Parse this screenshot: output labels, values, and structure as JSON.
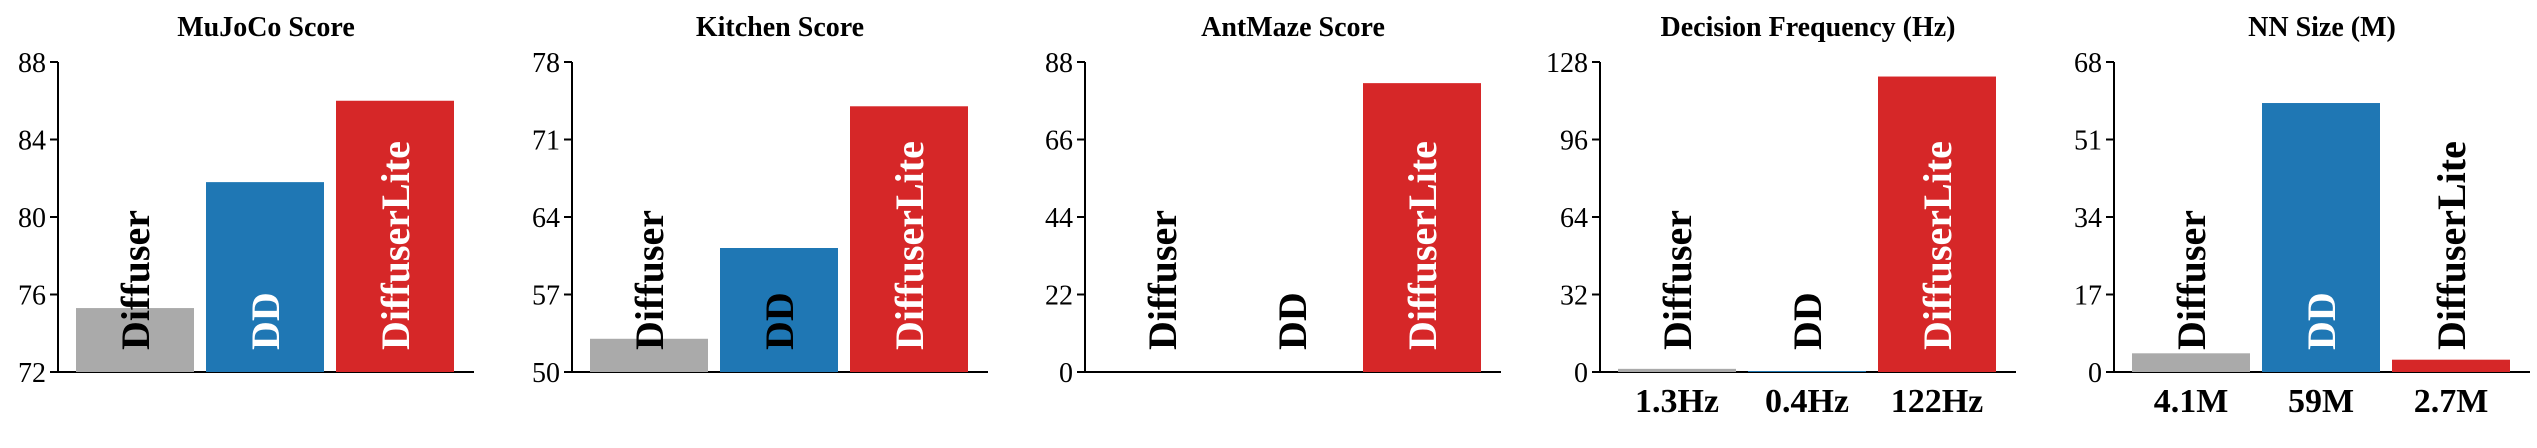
{
  "chart_data": [
    {
      "type": "bar",
      "title": "MuJoCo Score",
      "categories": [
        "Diffuser",
        "DD",
        "DiffuserLite"
      ],
      "values": [
        75.3,
        81.8,
        86.0
      ],
      "ylim": [
        72,
        88
      ],
      "yticks": [
        72,
        76,
        80,
        84,
        88
      ],
      "xlabels": [],
      "grid": false
    },
    {
      "type": "bar",
      "title": "Kitchen Score",
      "categories": [
        "Diffuser",
        "DD",
        "DiffuserLite"
      ],
      "values": [
        53.0,
        61.2,
        74.0
      ],
      "ylim": [
        50,
        78
      ],
      "yticks": [
        50,
        57,
        64,
        71,
        78
      ],
      "xlabels": [],
      "grid": false
    },
    {
      "type": "bar",
      "title": "AntMaze Score",
      "categories": [
        "Diffuser",
        "DD",
        "DiffuserLite"
      ],
      "values": [
        0,
        0,
        82.0
      ],
      "ylim": [
        0,
        88
      ],
      "yticks": [
        0,
        22,
        44,
        66,
        88
      ],
      "xlabels": [],
      "grid": false
    },
    {
      "type": "bar",
      "title": "Decision Frequency (Hz)",
      "categories": [
        "Diffuser",
        "DD",
        "DiffuserLite"
      ],
      "values": [
        1.3,
        0.4,
        122
      ],
      "ylim": [
        0,
        128
      ],
      "yticks": [
        0,
        32,
        64,
        96,
        128
      ],
      "xlabels": [
        "1.3Hz",
        "0.4Hz",
        "122Hz"
      ],
      "grid": false
    },
    {
      "type": "bar",
      "title": "NN Size (M)",
      "categories": [
        "Diffuser",
        "DD",
        "DiffuserLite"
      ],
      "values": [
        4.1,
        59,
        2.7
      ],
      "ylim": [
        0,
        68
      ],
      "yticks": [
        0,
        17,
        34,
        51,
        68
      ],
      "xlabels": [
        "4.1M",
        "59M",
        "2.7M"
      ],
      "grid": false
    }
  ],
  "colors": {
    "Diffuser": "#aaaaaa",
    "DD": "#1f77b4",
    "DiffuserLite": "#d62728",
    "label_on_dark": "#ffffff",
    "label_on_light": "#000000"
  }
}
